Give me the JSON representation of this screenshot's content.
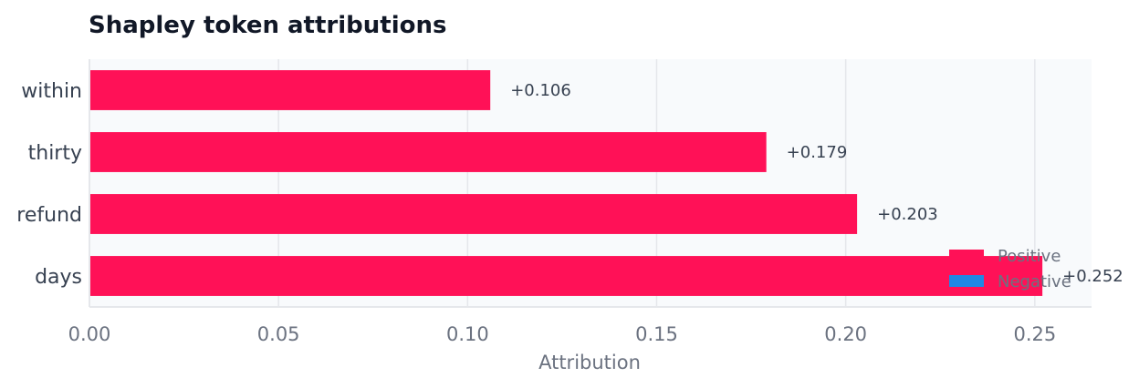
{
  "chart_data": {
    "type": "bar",
    "orientation": "horizontal",
    "title": "Shapley token attributions",
    "xlabel": "Attribution",
    "ylabel": "",
    "categories": [
      "within",
      "thirty",
      "refund",
      "days"
    ],
    "values": [
      0.106,
      0.179,
      0.203,
      0.252
    ],
    "data_labels": [
      "+0.106",
      "+0.179",
      "+0.203",
      "+0.252"
    ],
    "xlim": [
      0,
      0.265
    ],
    "xticks": [
      0.0,
      0.05,
      0.1,
      0.15,
      0.2,
      0.25
    ],
    "xtick_labels": [
      "0.00",
      "0.05",
      "0.10",
      "0.15",
      "0.20",
      "0.25"
    ],
    "grid": "vertical",
    "legend": {
      "placement": "bottom-right",
      "entries": [
        {
          "label": "Positive",
          "color": "#ff1157"
        },
        {
          "label": "Negative",
          "color": "#1e88e5"
        }
      ]
    },
    "colors": {
      "positive": "#ff1157",
      "negative": "#1e88e5",
      "plot_background": "#f8fafc",
      "grid": "#e5e7eb"
    }
  }
}
